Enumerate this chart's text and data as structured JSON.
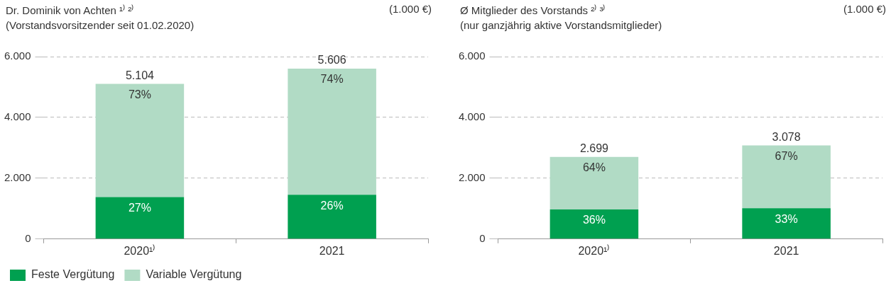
{
  "chart_data": [
    {
      "type": "bar",
      "stacked": true,
      "title": "Dr. Dominik von Achten ¹⁾ ²⁾",
      "subtitle": "(Vorstandsvorsitzender seit 01.02.2020)",
      "annotations": [
        "(1.000 €)",
        {
          "text": "27%",
          "x": "2020¹⁾",
          "y": 1378
        },
        {
          "text": "73%",
          "x": "2020¹⁾",
          "y": 5104
        },
        {
          "text": "26%",
          "x": "2021",
          "y": 1458
        },
        {
          "text": "74%",
          "x": "2021",
          "y": 5606
        }
      ],
      "categories": [
        "2020¹⁾",
        "2021"
      ],
      "series": [
        {
          "name": "Feste Vergütung",
          "color": "#00a050",
          "values": [
            1378,
            1458
          ]
        },
        {
          "name": "Variable Vergütung",
          "color": "#b1dbc5",
          "values": [
            3726,
            4148
          ]
        }
      ],
      "totals": [
        "5.104",
        "5.606"
      ],
      "ylim": [
        0,
        6000
      ],
      "yticks": [
        0,
        {
          "value": 2000,
          "label": "2.000"
        },
        {
          "value": 4000,
          "label": "4.000"
        },
        {
          "value": 6000,
          "label": "6.000"
        }
      ],
      "grid": "y",
      "legend": "bottom"
    },
    {
      "type": "bar",
      "stacked": true,
      "title": "Ø Mitglieder des Vorstands ²⁾ ³⁾",
      "subtitle": "(nur ganzjährig aktive Vorstandsmitglieder)",
      "annotations": [
        "(1.000 €)",
        {
          "text": "36%",
          "x": "2020¹⁾",
          "y": 972
        },
        {
          "text": "64%",
          "x": "2020¹⁾",
          "y": 2699
        },
        {
          "text": "33%",
          "x": "2021",
          "y": 1016
        },
        {
          "text": "67%",
          "x": "2021",
          "y": 3078
        }
      ],
      "categories": [
        "2020¹⁾",
        "2021"
      ],
      "series": [
        {
          "color": "#00a050",
          "values": [
            972,
            1016
          ]
        },
        {
          "color": "#b1dbc5",
          "values": [
            1727,
            2062
          ]
        }
      ],
      "totals": [
        "2.699",
        "3.078"
      ],
      "ylim": [
        0,
        6000
      ],
      "yticks": [
        0,
        {
          "value": 2000,
          "label": "2.000"
        },
        {
          "value": 4000,
          "label": "4.000"
        },
        {
          "value": 6000,
          "label": "6.000"
        }
      ],
      "grid": "y"
    }
  ]
}
